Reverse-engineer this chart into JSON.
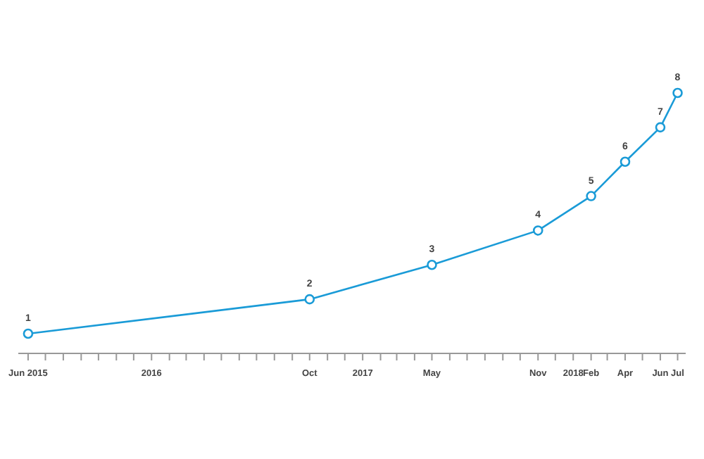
{
  "chart_data": {
    "type": "line",
    "x": [
      "2015-06",
      "2016-10",
      "2017-05",
      "2017-11",
      "2018-02",
      "2018-04",
      "2018-06",
      "2018-07"
    ],
    "series": [
      {
        "color": "#1a9bd7",
        "values": [
          1,
          2,
          3,
          4,
          5,
          6,
          7,
          8
        ]
      }
    ],
    "data_labels": true,
    "marker": "circle",
    "line_style": "solid",
    "tick_labels": "x",
    "xlim": [
      "2015-05-15",
      "2018-07-15"
    ],
    "xticks": [
      {
        "value": "2015-06",
        "label": "Jun 2015"
      },
      {
        "value": "2015-07",
        "label": null
      },
      {
        "value": "2015-08",
        "label": null
      },
      {
        "value": "2015-09",
        "label": null
      },
      {
        "value": "2015-10",
        "label": null
      },
      {
        "value": "2015-11",
        "label": null
      },
      {
        "value": "2015-12",
        "label": null
      },
      {
        "value": "2016-01",
        "label": "2016"
      },
      {
        "value": "2016-02",
        "label": null
      },
      {
        "value": "2016-03",
        "label": null
      },
      {
        "value": "2016-04",
        "label": null
      },
      {
        "value": "2016-05",
        "label": null
      },
      {
        "value": "2016-06",
        "label": null
      },
      {
        "value": "2016-07",
        "label": null
      },
      {
        "value": "2016-08",
        "label": null
      },
      {
        "value": "2016-09",
        "label": null
      },
      {
        "value": "2016-10",
        "label": "Oct"
      },
      {
        "value": "2016-11",
        "label": null
      },
      {
        "value": "2016-12",
        "label": null
      },
      {
        "value": "2017-01",
        "label": "2017"
      },
      {
        "value": "2017-02",
        "label": null
      },
      {
        "value": "2017-03",
        "label": null
      },
      {
        "value": "2017-04",
        "label": null
      },
      {
        "value": "2017-05",
        "label": "May"
      },
      {
        "value": "2017-06",
        "label": null
      },
      {
        "value": "2017-07",
        "label": null
      },
      {
        "value": "2017-08",
        "label": null
      },
      {
        "value": "2017-09",
        "label": null
      },
      {
        "value": "2017-10",
        "label": null
      },
      {
        "value": "2017-11",
        "label": "Nov"
      },
      {
        "value": "2017-12",
        "label": null
      },
      {
        "value": "2018-01",
        "label": "2018"
      },
      {
        "value": "2018-02",
        "label": "Feb"
      },
      {
        "value": "2018-03",
        "label": null
      },
      {
        "value": "2018-04",
        "label": "Apr"
      },
      {
        "value": "2018-05",
        "label": null
      },
      {
        "value": "2018-06",
        "label": "Jun"
      },
      {
        "value": "2018-07",
        "label": "Jul"
      }
    ]
  }
}
